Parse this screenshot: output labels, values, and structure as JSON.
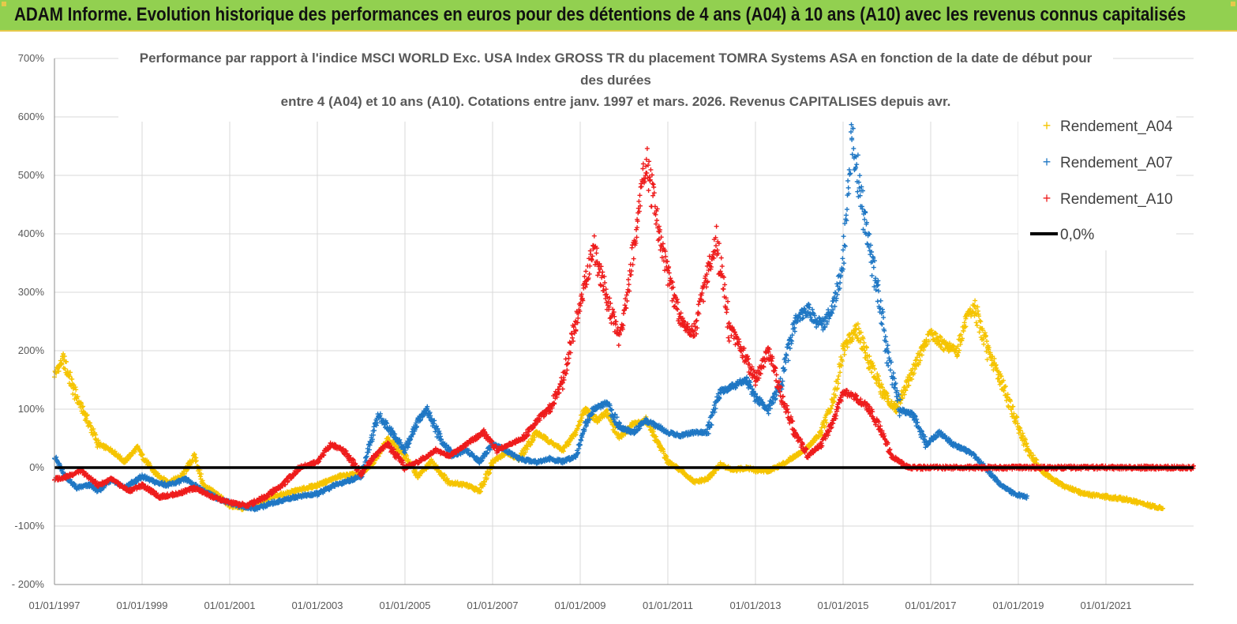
{
  "header": {
    "text": "ADAM Informe. Evolution historique des performances en euros pour des détentions de 4 ans (A04) à 10 ans (A10) avec les revenus connus capitalisés"
  },
  "chart_data": {
    "type": "scatter",
    "title_lines": [
      "Performance par rapport à l'indice MSCI WORLD Exc. USA Index GROSS TR  du placement TOMRA Systems ASA en fonction de la date de début pour",
      "des durées",
      "entre 4 (A04) et 10 ans (A10). Cotations entre janv. 1997 et mars. 2026. Revenus CAPITALISES depuis avr."
    ],
    "xlabel": "",
    "ylabel": "",
    "xlim": [
      1997.0,
      2023.0
    ],
    "ylim": [
      -200,
      700
    ],
    "y_ticks": [
      -200,
      -100,
      0,
      100,
      200,
      300,
      400,
      500,
      600,
      700
    ],
    "y_tick_labels": [
      "- 200%",
      "-100%",
      "0%",
      "100%",
      "200%",
      "300%",
      "400%",
      "500%",
      "600%",
      "700%"
    ],
    "x_ticks": [
      1997,
      1999,
      2001,
      2003,
      2005,
      2007,
      2009,
      2011,
      2013,
      2015,
      2017,
      2019,
      2021
    ],
    "x_tick_labels": [
      "01/01/1997",
      "01/01/1999",
      "01/01/2001",
      "01/01/2003",
      "01/01/2005",
      "01/01/2007",
      "01/01/2009",
      "01/01/2011",
      "01/01/2013",
      "01/01/2015",
      "01/01/2017",
      "01/01/2019",
      "01/01/2021"
    ],
    "legend_position": "right",
    "colors": {
      "A04": "#f5c400",
      "A07": "#1f77c4",
      "A10": "#ee1c1c",
      "zero": "#000000",
      "grid": "#d9d9d9",
      "axis": "#8c8c8c"
    },
    "series": [
      {
        "name": "Rendement_A04",
        "key": "A04",
        "marker": "+",
        "x": [
          1997.0,
          1997.2,
          1997.5,
          1997.7,
          1998.0,
          1998.3,
          1998.6,
          1998.9,
          1999.0,
          1999.3,
          1999.6,
          1999.9,
          2000.2,
          2000.4,
          2000.7,
          2001.0,
          2001.3,
          2001.6,
          2002.0,
          2002.5,
          2003.0,
          2003.5,
          2004.0,
          2004.3,
          2004.6,
          2005.0,
          2005.3,
          2005.6,
          2006.0,
          2006.4,
          2006.7,
          2007.0,
          2007.3,
          2007.6,
          2008.0,
          2008.3,
          2008.6,
          2008.9,
          2009.1,
          2009.4,
          2009.6,
          2009.9,
          2010.2,
          2010.5,
          2010.8,
          2011.0,
          2011.3,
          2011.6,
          2011.9,
          2012.2,
          2012.5,
          2012.8,
          2013.0,
          2013.3,
          2013.6,
          2013.9,
          2014.2,
          2014.5,
          2014.8,
          2015.0,
          2015.3,
          2015.6,
          2015.9,
          2016.2,
          2016.5,
          2016.8,
          2017.0,
          2017.3,
          2017.6,
          2017.8,
          2018.0,
          2018.3,
          2018.6,
          2018.9,
          2019.2,
          2019.6,
          2020.0,
          2020.5,
          2021.0,
          2021.5,
          2022.0,
          2022.3
        ],
        "y": [
          160,
          185,
          120,
          90,
          40,
          30,
          10,
          35,
          20,
          -10,
          -25,
          -15,
          20,
          -30,
          -45,
          -65,
          -70,
          -60,
          -50,
          -40,
          -30,
          -15,
          -10,
          10,
          50,
          20,
          -15,
          10,
          -25,
          -30,
          -40,
          10,
          25,
          15,
          60,
          45,
          30,
          60,
          100,
          80,
          95,
          50,
          75,
          80,
          40,
          10,
          -5,
          -25,
          -20,
          5,
          -5,
          0,
          -5,
          -5,
          5,
          20,
          35,
          60,
          120,
          200,
          240,
          180,
          130,
          100,
          150,
          200,
          230,
          210,
          200,
          250,
          275,
          200,
          150,
          90,
          30,
          -10,
          -30,
          -45,
          -50,
          -55,
          -65,
          -70
        ]
      },
      {
        "name": "Rendement_A07",
        "key": "A07",
        "marker": "+",
        "x": [
          1997.0,
          1997.2,
          1997.5,
          1997.8,
          1998.0,
          1998.3,
          1998.6,
          1999.0,
          1999.3,
          1999.6,
          2000.0,
          2000.4,
          2000.8,
          2001.2,
          2001.6,
          2002.0,
          2002.5,
          2003.0,
          2003.4,
          2003.8,
          2004.0,
          2004.2,
          2004.4,
          2004.7,
          2005.0,
          2005.3,
          2005.5,
          2005.8,
          2006.1,
          2006.4,
          2006.7,
          2007.0,
          2007.3,
          2007.6,
          2008.0,
          2008.3,
          2008.6,
          2008.9,
          2009.1,
          2009.3,
          2009.6,
          2009.9,
          2010.2,
          2010.5,
          2010.8,
          2011.0,
          2011.3,
          2011.6,
          2011.9,
          2012.2,
          2012.5,
          2012.8,
          2013.0,
          2013.3,
          2013.6,
          2013.9,
          2014.2,
          2014.5,
          2014.8,
          2015.0,
          2015.2,
          2015.5,
          2015.8,
          2016.0,
          2016.3,
          2016.6,
          2016.9,
          2017.2,
          2017.5,
          2017.8,
          2018.0,
          2018.3,
          2018.6,
          2018.9,
          2019.2
        ],
        "y": [
          20,
          -10,
          -35,
          -30,
          -40,
          -20,
          -35,
          -15,
          -25,
          -30,
          -20,
          -40,
          -55,
          -65,
          -70,
          -60,
          -50,
          -45,
          -30,
          -20,
          -15,
          40,
          90,
          60,
          30,
          80,
          100,
          50,
          20,
          30,
          10,
          40,
          30,
          15,
          10,
          15,
          10,
          20,
          70,
          100,
          110,
          70,
          60,
          80,
          70,
          60,
          55,
          60,
          60,
          130,
          140,
          150,
          120,
          100,
          150,
          250,
          270,
          240,
          280,
          350,
          570,
          420,
          300,
          200,
          100,
          90,
          40,
          60,
          40,
          30,
          20,
          -5,
          -30,
          -45,
          -50
        ]
      },
      {
        "name": "Rendement_A10",
        "key": "A10",
        "marker": "+",
        "x": [
          1997.0,
          1997.3,
          1997.6,
          1998.0,
          1998.3,
          1998.7,
          1999.0,
          1999.4,
          1999.8,
          2000.2,
          2000.6,
          2001.0,
          2001.4,
          2001.8,
          2002.2,
          2002.6,
          2003.0,
          2003.3,
          2003.6,
          2004.0,
          2004.3,
          2004.6,
          2005.0,
          2005.3,
          2005.7,
          2006.0,
          2006.4,
          2006.8,
          2007.1,
          2007.4,
          2007.7,
          2008.0,
          2008.3,
          2008.6,
          2008.9,
          2009.1,
          2009.3,
          2009.6,
          2009.9,
          2010.1,
          2010.3,
          2010.5,
          2010.8,
          2011.0,
          2011.3,
          2011.6,
          2011.9,
          2012.1,
          2012.4,
          2012.7,
          2013.0,
          2013.3,
          2013.6,
          2013.9,
          2014.2,
          2014.5,
          2014.8,
          2015.0,
          2015.3,
          2015.6,
          2015.9,
          2016.1,
          2016.5,
          2017.0,
          2018.0,
          2019.0,
          2020.0,
          2021.0,
          2022.0,
          2023.0
        ],
        "y": [
          -20,
          -15,
          -5,
          -30,
          -20,
          -40,
          -30,
          -50,
          -45,
          -35,
          -50,
          -60,
          -65,
          -50,
          -30,
          0,
          10,
          40,
          30,
          -10,
          20,
          40,
          0,
          10,
          30,
          20,
          40,
          60,
          30,
          40,
          50,
          80,
          100,
          150,
          250,
          310,
          380,
          290,
          220,
          310,
          420,
          530,
          400,
          330,
          250,
          230,
          330,
          390,
          240,
          200,
          150,
          200,
          120,
          60,
          20,
          40,
          80,
          130,
          120,
          100,
          60,
          20,
          0,
          0,
          0,
          0,
          0,
          0,
          0,
          0
        ]
      },
      {
        "name": "0,0%",
        "key": "zero",
        "marker": "line",
        "x": [
          1997.0,
          2023.0
        ],
        "y": [
          0,
          0
        ]
      }
    ]
  }
}
